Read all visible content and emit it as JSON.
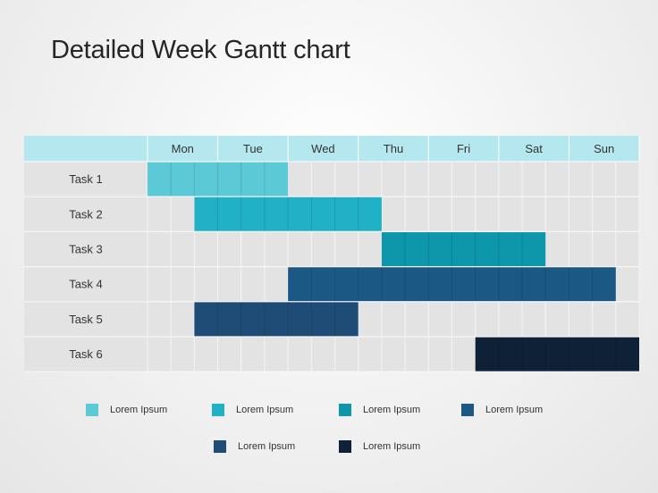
{
  "title": "Detailed Week Gantt chart",
  "chart_data": {
    "type": "gantt",
    "days": [
      "Mon",
      "Tue",
      "Wed",
      "Thu",
      "Fri",
      "Sat",
      "Sun"
    ],
    "slots_per_day": 3,
    "tasks": [
      {
        "label": "Task 1",
        "start": 0,
        "end": 6,
        "color": "#5cc9d7"
      },
      {
        "label": "Task 2",
        "start": 2,
        "end": 10,
        "color": "#20b1c7"
      },
      {
        "label": "Task 3",
        "start": 10,
        "end": 17,
        "color": "#0e96ab"
      },
      {
        "label": "Task 4",
        "start": 6,
        "end": 20,
        "color": "#1b5883"
      },
      {
        "label": "Task 5",
        "start": 2,
        "end": 9,
        "color": "#1e4c77"
      },
      {
        "label": "Task 6",
        "start": 14,
        "end": 21,
        "color": "#0f2136"
      }
    ],
    "header_color": "#b4e8ee",
    "legend": [
      {
        "label": "Lorem Ipsum",
        "color": "#5cc9d7"
      },
      {
        "label": "Lorem Ipsum",
        "color": "#20b1c7"
      },
      {
        "label": "Lorem Ipsum",
        "color": "#0e96ab"
      },
      {
        "label": "Lorem Ipsum",
        "color": "#1b5883"
      },
      {
        "label": "Lorem Ipsum",
        "color": "#1e4c77"
      },
      {
        "label": "Lorem Ipsum",
        "color": "#0f2136"
      }
    ]
  }
}
